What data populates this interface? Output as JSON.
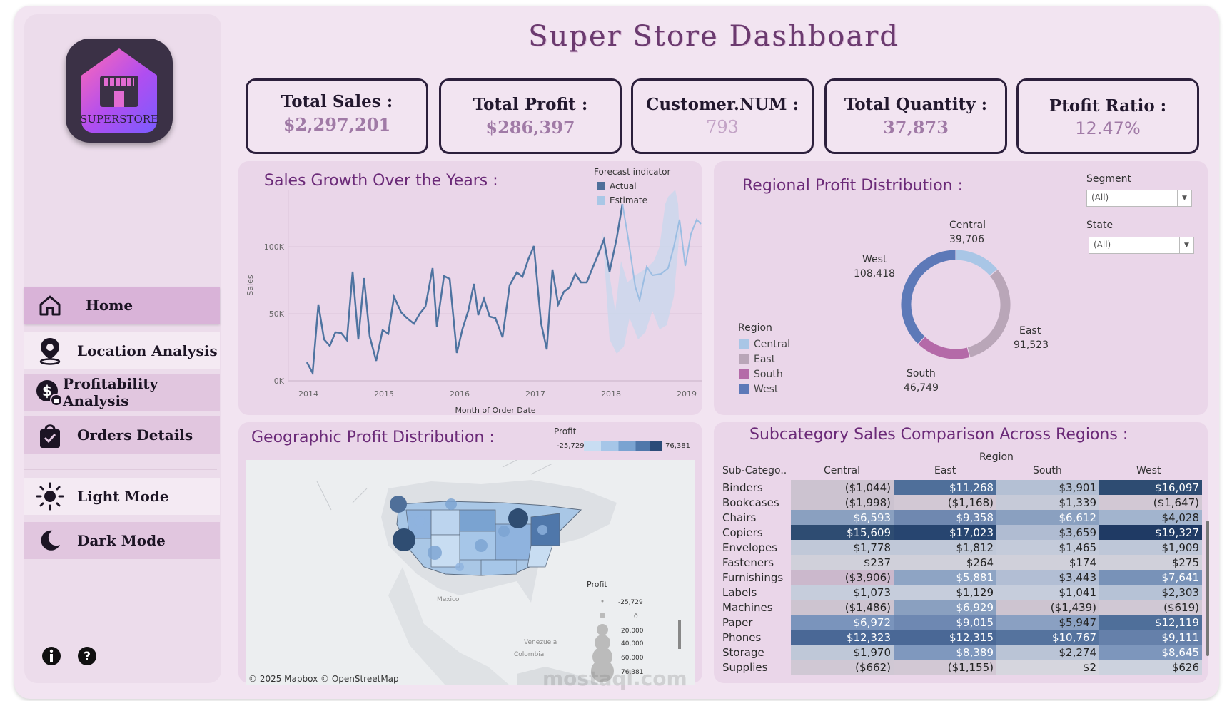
{
  "title": "Super Store  Dashboard",
  "logo_text": "SUPERSTORE",
  "nav": [
    {
      "label": "Home",
      "icon": "home-icon"
    },
    {
      "label": "Location Analysis",
      "icon": "location-pin-icon"
    },
    {
      "label": "Profitability Analysis",
      "icon": "dollar-icon"
    },
    {
      "label": "Orders Details",
      "icon": "shopping-bag-icon"
    },
    {
      "label": "Light Mode",
      "icon": "sun-icon"
    },
    {
      "label": "Dark Mode",
      "icon": "moon-icon"
    }
  ],
  "kpis": [
    {
      "title": "Total Sales :",
      "value": "$2,297,201"
    },
    {
      "title": "Total Profit :",
      "value": "$286,397"
    },
    {
      "title": "Customer.NUM :",
      "value": "793"
    },
    {
      "title": "Total Quantity :",
      "value": "37,873"
    },
    {
      "title": "Ptofit Ratio :",
      "value": "12.47%"
    }
  ],
  "sales_chart": {
    "title": "Sales Growth Over the Years :",
    "legend_title": "Forecast indicator",
    "legend": [
      "Actual",
      "Estimate"
    ],
    "ylabel": "Sales",
    "xlabel": "Month of Order Date",
    "yticks": [
      "100K",
      "50K",
      "0K"
    ],
    "xticks": [
      "2014",
      "2015",
      "2016",
      "2017",
      "2018",
      "2019"
    ]
  },
  "regional": {
    "title": "Regional Profit Distribution :",
    "segment_label": "Segment",
    "segment_value": "(All)",
    "state_label": "State",
    "state_value": "(All)",
    "legend_title": "Region",
    "regions": [
      {
        "name": "Central",
        "value": "39,706",
        "color": "#a9c6e6"
      },
      {
        "name": "East",
        "value": "91,523",
        "color": "#b9a6b8"
      },
      {
        "name": "South",
        "value": "46,749",
        "color": "#b46aa8"
      },
      {
        "name": "West",
        "value": "108,418",
        "color": "#5d79b8"
      }
    ]
  },
  "geo": {
    "title": "Geographic Profit Distribution :",
    "legend_title": "Profit",
    "legend_min": "-25,729",
    "legend_max": "76,381",
    "size_legend_title": "Profit",
    "size_legend": [
      "-25,729",
      "0",
      "20,000",
      "40,000",
      "60,000",
      "76,381"
    ],
    "attribution": "© 2025 Mapbox © OpenStreetMap",
    "labels": [
      "Mexico",
      "Venezuela",
      "Colombia"
    ]
  },
  "subcat": {
    "title": "Subcategory Sales Comparison Across Regions :",
    "region_header": "Region",
    "col_header": "Sub-Catego..",
    "columns": [
      "Central",
      "East",
      "South",
      "West"
    ],
    "rows": [
      {
        "name": "Binders",
        "vals": [
          "($1,044)",
          "$11,268",
          "$3,901",
          "$16,097"
        ]
      },
      {
        "name": "Bookcases",
        "vals": [
          "($1,998)",
          "($1,168)",
          "$1,339",
          "($1,647)"
        ]
      },
      {
        "name": "Chairs",
        "vals": [
          "$6,593",
          "$9,358",
          "$6,612",
          "$4,028"
        ]
      },
      {
        "name": "Copiers",
        "vals": [
          "$15,609",
          "$17,023",
          "$3,659",
          "$19,327"
        ]
      },
      {
        "name": "Envelopes",
        "vals": [
          "$1,778",
          "$1,812",
          "$1,465",
          "$1,909"
        ]
      },
      {
        "name": "Fasteners",
        "vals": [
          "$237",
          "$264",
          "$174",
          "$275"
        ]
      },
      {
        "name": "Furnishings",
        "vals": [
          "($3,906)",
          "$5,881",
          "$3,443",
          "$7,641"
        ]
      },
      {
        "name": "Labels",
        "vals": [
          "$1,073",
          "$1,129",
          "$1,041",
          "$2,303"
        ]
      },
      {
        "name": "Machines",
        "vals": [
          "($1,486)",
          "$6,929",
          "($1,439)",
          "($619)"
        ]
      },
      {
        "name": "Paper",
        "vals": [
          "$6,972",
          "$9,015",
          "$5,947",
          "$12,119"
        ]
      },
      {
        "name": "Phones",
        "vals": [
          "$12,323",
          "$12,315",
          "$10,767",
          "$9,111"
        ]
      },
      {
        "name": "Storage",
        "vals": [
          "$1,970",
          "$8,389",
          "$2,274",
          "$8,645"
        ]
      },
      {
        "name": "Supplies",
        "vals": [
          "($662)",
          "($1,155)",
          "$2",
          "$626"
        ]
      }
    ]
  },
  "watermark": "mostaql.com"
}
